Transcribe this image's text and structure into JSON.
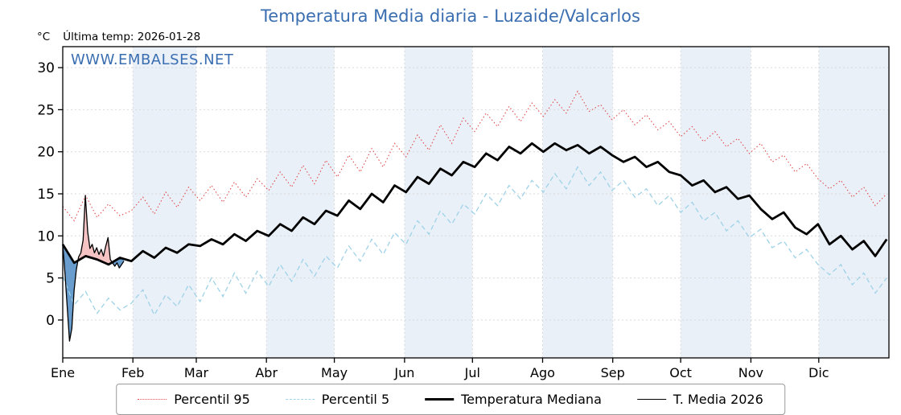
{
  "header": {
    "unit_label": "°C",
    "last_temp_label": "Última temp: 2026-01-28",
    "watermark": "WWW.EMBALSES.NET"
  },
  "legend": {
    "items": [
      {
        "label": "Percentil 95"
      },
      {
        "label": "Percentil 5"
      },
      {
        "label": "Temperatura Mediana"
      },
      {
        "label": "T. Media 2026"
      }
    ]
  },
  "chart_data": {
    "type": "line",
    "title": "Temperatura Media diaria - Luzaide/Valcarlos",
    "ylabel": "°C",
    "ylim": [
      -4.5,
      32.5
    ],
    "yticks": [
      0,
      5,
      10,
      15,
      20,
      25,
      30
    ],
    "months": [
      "Ene",
      "Feb",
      "Mar",
      "Abr",
      "May",
      "Jun",
      "Jul",
      "Ago",
      "Sep",
      "Oct",
      "Nov",
      "Dic"
    ],
    "month_start_days": [
      1,
      32,
      60,
      91,
      121,
      152,
      182,
      213,
      244,
      274,
      305,
      335,
      366
    ],
    "shaded_month_indices": [
      1,
      3,
      5,
      7,
      9,
      11
    ],
    "grid": true,
    "legend_position": "bottom",
    "colors": {
      "p95": "#e14b4b",
      "p5": "#9fd2e8",
      "median": "#000000",
      "t2026": "#000000",
      "fill_above": "#f3b9b9",
      "fill_below": "#4e8cc6",
      "band": "#e9f0f8",
      "grid": "#d9d9d9",
      "title": "#3a6eb0"
    },
    "series": [
      {
        "name": "Percentil 95",
        "values": [
          13.5,
          11.8,
          14.8,
          12.2,
          13.8,
          12.4,
          13.0,
          14.6,
          12.6,
          15.2,
          13.4,
          15.8,
          14.2,
          16.0,
          14.0,
          16.4,
          14.6,
          16.8,
          15.4,
          17.6,
          15.8,
          18.4,
          16.2,
          19.0,
          17.0,
          19.6,
          17.6,
          20.4,
          18.2,
          21.0,
          19.4,
          22.0,
          20.2,
          23.2,
          21.0,
          24.0,
          22.4,
          24.6,
          23.0,
          25.4,
          23.6,
          25.8,
          24.2,
          26.2,
          24.6,
          27.2,
          24.8,
          25.6,
          23.8,
          25.0,
          23.2,
          24.4,
          22.6,
          23.6,
          21.8,
          23.0,
          21.2,
          22.4,
          20.6,
          21.6,
          19.8,
          21.0,
          18.8,
          19.6,
          17.6,
          18.6,
          16.8,
          15.6,
          16.6,
          14.6,
          15.8,
          13.6,
          15.0
        ]
      },
      {
        "name": "Percentil 5",
        "values": [
          5.2,
          1.8,
          3.4,
          0.8,
          2.6,
          1.2,
          2.0,
          3.6,
          0.6,
          3.0,
          1.6,
          4.2,
          2.2,
          5.0,
          2.8,
          5.6,
          3.2,
          5.8,
          4.0,
          6.6,
          4.6,
          7.2,
          5.2,
          7.6,
          6.2,
          8.8,
          7.0,
          9.6,
          7.8,
          10.4,
          9.0,
          11.8,
          10.2,
          13.0,
          11.4,
          13.8,
          12.6,
          15.0,
          13.6,
          16.0,
          14.4,
          16.6,
          15.2,
          17.4,
          15.6,
          18.2,
          16.0,
          17.6,
          15.4,
          16.6,
          14.6,
          15.6,
          13.6,
          14.8,
          12.8,
          14.0,
          11.8,
          12.8,
          10.6,
          11.8,
          9.8,
          10.8,
          8.6,
          9.4,
          7.4,
          8.4,
          6.6,
          5.4,
          6.6,
          4.2,
          5.6,
          3.2,
          5.0
        ]
      },
      {
        "name": "Temperatura Mediana",
        "values": [
          9.0,
          6.8,
          7.6,
          7.2,
          6.6,
          7.4,
          7.0,
          8.2,
          7.4,
          8.6,
          8.0,
          9.0,
          8.8,
          9.6,
          9.0,
          10.2,
          9.4,
          10.6,
          10.0,
          11.4,
          10.6,
          12.2,
          11.4,
          13.0,
          12.4,
          14.2,
          13.2,
          15.0,
          14.0,
          16.0,
          15.2,
          17.0,
          16.2,
          18.0,
          17.2,
          18.8,
          18.2,
          19.8,
          19.0,
          20.6,
          19.8,
          21.0,
          20.0,
          21.0,
          20.2,
          20.8,
          19.8,
          20.6,
          19.6,
          18.8,
          19.4,
          18.2,
          18.8,
          17.6,
          17.2,
          16.0,
          16.6,
          15.2,
          15.8,
          14.4,
          14.8,
          13.2,
          12.0,
          12.8,
          11.0,
          10.2,
          11.4,
          9.0,
          10.0,
          8.4,
          9.4,
          7.6,
          9.6
        ]
      },
      {
        "name": "T. Media 2026",
        "days": [
          1,
          2,
          3,
          4,
          5,
          6,
          7,
          8,
          9,
          10,
          11,
          12,
          13,
          14,
          15,
          16,
          17,
          18,
          19,
          20,
          21,
          22,
          23,
          24,
          25,
          26,
          27,
          28
        ],
        "values": [
          9.0,
          5.5,
          1.5,
          -2.5,
          -1.0,
          3.5,
          6.0,
          7.5,
          8.0,
          9.5,
          14.8,
          10.5,
          8.5,
          9.0,
          8.0,
          8.6,
          7.8,
          8.4,
          7.6,
          8.8,
          9.8,
          7.2,
          6.8,
          6.4,
          6.8,
          6.2,
          6.6,
          7.0
        ]
      }
    ]
  }
}
